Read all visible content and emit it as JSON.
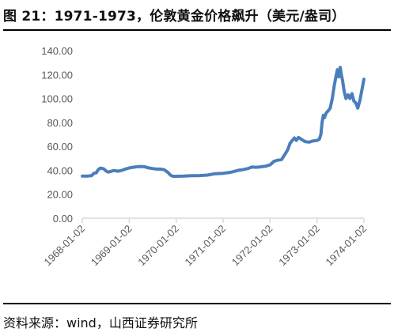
{
  "title": "图 21：1971-1973，伦敦黄金价格飙升（美元/盎司）",
  "source": "资料来源：wind，山西证券研究所",
  "colors": {
    "line": "#4a7ebb",
    "axis": "#d9d9d9",
    "tick_text": "#595959"
  },
  "chart_data": {
    "type": "line",
    "title": "",
    "xlabel": "",
    "ylabel": "",
    "ylim": [
      0,
      140
    ],
    "yticks": [
      "0.00",
      "20.00",
      "40.00",
      "60.00",
      "80.00",
      "100.00",
      "120.00",
      "140.00"
    ],
    "xlim": [
      "1968-01-02",
      "1974-01-02"
    ],
    "xticks": [
      "1968-01-02",
      "1969-01-02",
      "1970-01-02",
      "1971-01-02",
      "1972-01-02",
      "1973-01-02",
      "1974-01-02"
    ],
    "grid": false,
    "legend": "none",
    "series": [
      {
        "points": [
          [
            "1968-01-02",
            35.2
          ],
          [
            "1968-02-15",
            35.2
          ],
          [
            "1968-03-15",
            35.6
          ],
          [
            "1968-04-01",
            37.5
          ],
          [
            "1968-04-20",
            38.0
          ],
          [
            "1968-05-05",
            40.5
          ],
          [
            "1968-05-20",
            41.8
          ],
          [
            "1968-06-05",
            41.6
          ],
          [
            "1968-06-20",
            41.0
          ],
          [
            "1968-07-05",
            39.5
          ],
          [
            "1968-07-20",
            38.5
          ],
          [
            "1968-08-10",
            39.0
          ],
          [
            "1968-09-01",
            39.8
          ],
          [
            "1968-09-20",
            39.6
          ],
          [
            "1968-10-05",
            39.2
          ],
          [
            "1968-11-01",
            39.8
          ],
          [
            "1968-12-01",
            41.0
          ],
          [
            "1969-01-02",
            42.0
          ],
          [
            "1969-02-01",
            42.5
          ],
          [
            "1969-03-01",
            43.0
          ],
          [
            "1969-04-01",
            43.2
          ],
          [
            "1969-05-01",
            43.0
          ],
          [
            "1969-06-01",
            42.0
          ],
          [
            "1969-07-01",
            41.5
          ],
          [
            "1969-08-01",
            41.0
          ],
          [
            "1969-09-01",
            41.0
          ],
          [
            "1969-10-01",
            40.5
          ],
          [
            "1969-11-01",
            38.0
          ],
          [
            "1969-11-20",
            35.8
          ],
          [
            "1969-12-10",
            35.0
          ],
          [
            "1970-01-02",
            35.0
          ],
          [
            "1970-03-01",
            35.1
          ],
          [
            "1970-05-01",
            35.5
          ],
          [
            "1970-07-01",
            35.6
          ],
          [
            "1970-09-01",
            36.0
          ],
          [
            "1970-11-01",
            37.2
          ],
          [
            "1971-01-02",
            37.5
          ],
          [
            "1971-03-01",
            38.3
          ],
          [
            "1971-05-01",
            40.0
          ],
          [
            "1971-06-01",
            40.5
          ],
          [
            "1971-07-15",
            41.5
          ],
          [
            "1971-08-15",
            42.8
          ],
          [
            "1971-09-15",
            42.5
          ],
          [
            "1971-10-15",
            42.8
          ],
          [
            "1971-12-01",
            43.5
          ],
          [
            "1972-01-02",
            44.5
          ],
          [
            "1972-02-01",
            47.5
          ],
          [
            "1972-03-01",
            48.5
          ],
          [
            "1972-04-01",
            49.0
          ],
          [
            "1972-05-01",
            54.0
          ],
          [
            "1972-05-20",
            57.5
          ],
          [
            "1972-06-05",
            62.5
          ],
          [
            "1972-06-20",
            64.5
          ],
          [
            "1972-07-10",
            67.0
          ],
          [
            "1972-07-25",
            65.0
          ],
          [
            "1972-08-10",
            67.5
          ],
          [
            "1972-09-01",
            66.0
          ],
          [
            "1972-10-01",
            64.0
          ],
          [
            "1972-11-01",
            63.5
          ],
          [
            "1972-12-01",
            64.5
          ],
          [
            "1973-01-02",
            65.0
          ],
          [
            "1973-01-20",
            66.0
          ],
          [
            "1973-02-01",
            70.0
          ],
          [
            "1973-02-10",
            80.0
          ],
          [
            "1973-02-20",
            86.0
          ],
          [
            "1973-03-01",
            84.0
          ],
          [
            "1973-03-15",
            88.0
          ],
          [
            "1973-04-01",
            90.0
          ],
          [
            "1973-04-15",
            92.0
          ],
          [
            "1973-05-01",
            100.0
          ],
          [
            "1973-05-15",
            110.0
          ],
          [
            "1973-06-01",
            120.0
          ],
          [
            "1973-06-10",
            124.0
          ],
          [
            "1973-06-20",
            118.0
          ],
          [
            "1973-07-01",
            126.0
          ],
          [
            "1973-07-10",
            120.0
          ],
          [
            "1973-07-20",
            115.0
          ],
          [
            "1973-08-01",
            106.0
          ],
          [
            "1973-08-15",
            100.0
          ],
          [
            "1973-09-01",
            103.0
          ],
          [
            "1973-09-15",
            100.0
          ],
          [
            "1973-10-01",
            104.0
          ],
          [
            "1973-10-15",
            98.0
          ],
          [
            "1973-11-01",
            96.0
          ],
          [
            "1973-11-15",
            92.0
          ],
          [
            "1973-12-01",
            98.0
          ],
          [
            "1973-12-15",
            106.0
          ],
          [
            "1974-01-02",
            116.0
          ]
        ]
      }
    ]
  }
}
